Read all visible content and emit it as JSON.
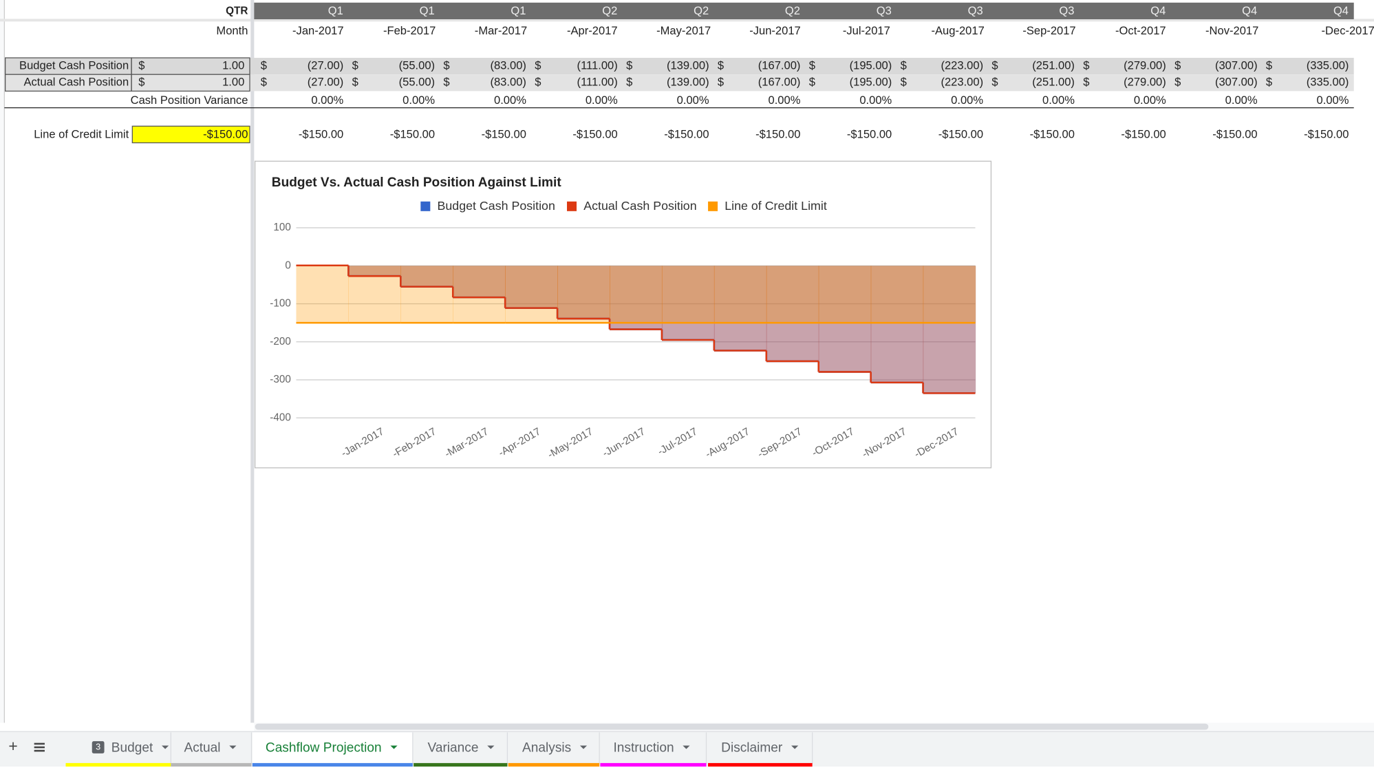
{
  "sheet": {
    "qtr_label": "QTR",
    "quarters": [
      "Q1",
      "Q1",
      "Q1",
      "Q2",
      "Q2",
      "Q2",
      "Q3",
      "Q3",
      "Q3",
      "Q4",
      "Q4",
      "Q4"
    ],
    "month_label": "Month",
    "months": [
      "-Jan-2017",
      "-Feb-2017",
      "-Mar-2017",
      "-Apr-2017",
      "-May-2017",
      "-Jun-2017",
      "-Jul-2017",
      "-Aug-2017",
      "-Sep-2017",
      "-Oct-2017",
      "-Nov-2017",
      "-Dec-2017"
    ],
    "currency": "$",
    "rows": [
      {
        "label": "Budget Cash Position",
        "start": "1.00",
        "values": [
          "(27.00)",
          "(55.00)",
          "(83.00)",
          "(111.00)",
          "(139.00)",
          "(167.00)",
          "(195.00)",
          "(223.00)",
          "(251.00)",
          "(279.00)",
          "(307.00)",
          "(335.00)"
        ]
      },
      {
        "label": "Actual Cash Position",
        "start": "1.00",
        "values": [
          "(27.00)",
          "(55.00)",
          "(83.00)",
          "(111.00)",
          "(139.00)",
          "(167.00)",
          "(195.00)",
          "(223.00)",
          "(251.00)",
          "(279.00)",
          "(307.00)",
          "(335.00)"
        ]
      }
    ],
    "variance": {
      "label": "Cash Position Variance",
      "values": [
        "0.00%",
        "0.00%",
        "0.00%",
        "0.00%",
        "0.00%",
        "0.00%",
        "0.00%",
        "0.00%",
        "0.00%",
        "0.00%",
        "0.00%",
        "0.00%"
      ]
    },
    "credit": {
      "label": "Line of Credit Limit",
      "limit": "-$150.00",
      "values": [
        "-$150.00",
        "-$150.00",
        "-$150.00",
        "-$150.00",
        "-$150.00",
        "-$150.00",
        "-$150.00",
        "-$150.00",
        "-$150.00",
        "-$150.00",
        "-$150.00",
        "-$150.00"
      ]
    }
  },
  "chart_data": {
    "type": "stepped-area",
    "title": "Budget Vs. Actual Cash Position Against Limit",
    "categories": [
      null,
      "-Jan-2017",
      "-Feb-2017",
      "-Mar-2017",
      "-Apr-2017",
      "-May-2017",
      "-Jun-2017",
      "-Jul-2017",
      "-Aug-2017",
      "-Sep-2017",
      "-Oct-2017",
      "-Nov-2017",
      "-Dec-2017"
    ],
    "series": [
      {
        "name": "Budget Cash Position",
        "color": "#3366cc",
        "values": [
          1,
          -27,
          -55,
          -83,
          -111,
          -139,
          -167,
          -195,
          -223,
          -251,
          -279,
          -307,
          -335
        ]
      },
      {
        "name": "Actual Cash Position",
        "color": "#dc3912",
        "values": [
          1,
          -27,
          -55,
          -83,
          -111,
          -139,
          -167,
          -195,
          -223,
          -251,
          -279,
          -307,
          -335
        ]
      },
      {
        "name": "Line of Credit Limit",
        "color": "#ff9900",
        "values": [
          -150,
          -150,
          -150,
          -150,
          -150,
          -150,
          -150,
          -150,
          -150,
          -150,
          -150,
          -150,
          -150
        ]
      }
    ],
    "ylim": [
      -400,
      100
    ],
    "yticks": [
      -400,
      -300,
      -200,
      -100,
      0,
      100
    ],
    "grid": true,
    "legend": "top"
  },
  "tabs": [
    {
      "name": "Budget",
      "badge": "3"
    },
    {
      "name": "Actual"
    },
    {
      "name": "Cashflow Projection"
    },
    {
      "name": "Variance"
    },
    {
      "name": "Analysis"
    },
    {
      "name": "Instruction"
    },
    {
      "name": "Disclaimer"
    }
  ]
}
